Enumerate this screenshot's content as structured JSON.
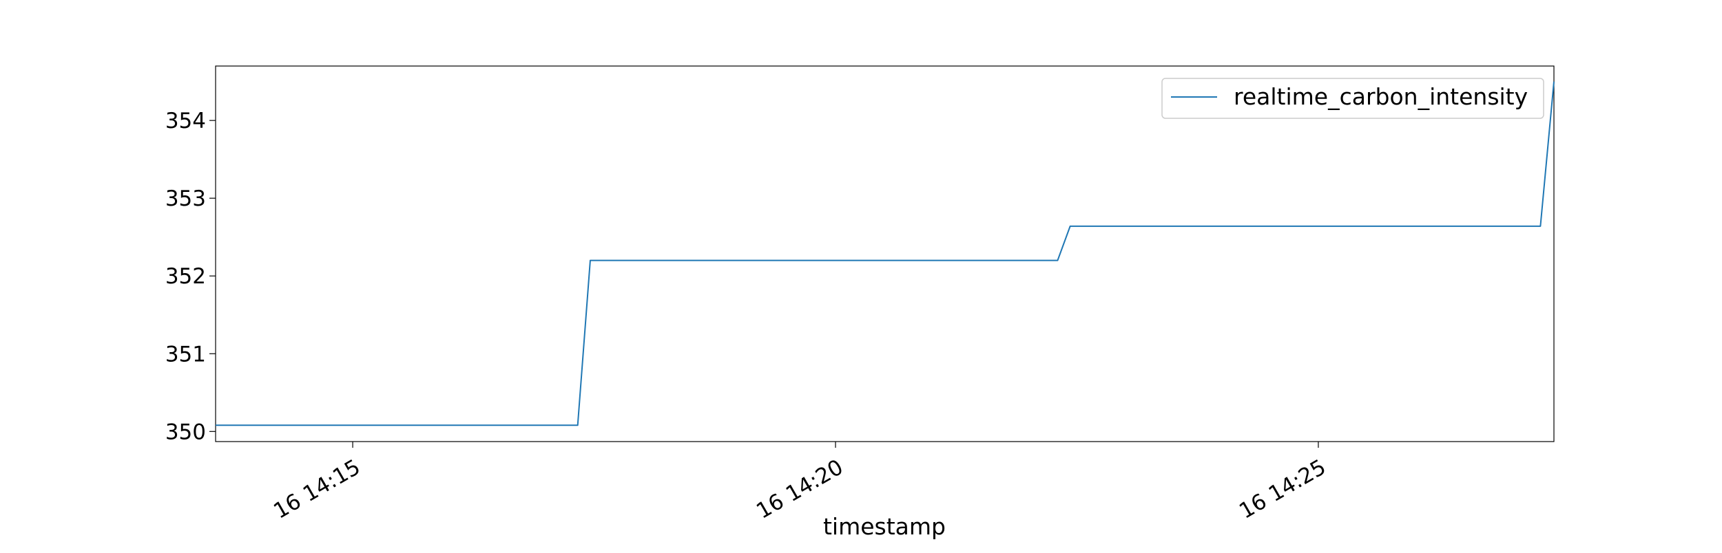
{
  "chart_data": {
    "type": "line",
    "title": "",
    "xlabel": "timestamp",
    "ylabel": "",
    "legend": {
      "placement": "upper-right",
      "entries": [
        "realtime_carbon_intensity"
      ]
    },
    "grid": false,
    "x_tick_labels": [
      "16 14:15",
      "16 14:20",
      "16 14:25"
    ],
    "x_tick_minutes": [
      15,
      20,
      25
    ],
    "y_ticks": [
      350,
      351,
      352,
      353,
      354
    ],
    "xlim_minutes": [
      13.58,
      27.44
    ],
    "ylim": [
      349.87,
      354.7
    ],
    "series": [
      {
        "name": "realtime_carbon_intensity",
        "color": "#1f77b4",
        "x_minutes": [
          13.58,
          17.33,
          17.46,
          22.3,
          22.43,
          27.3,
          27.44
        ],
        "values": [
          350.08,
          350.08,
          352.2,
          352.2,
          352.64,
          352.64,
          354.5
        ]
      }
    ]
  }
}
